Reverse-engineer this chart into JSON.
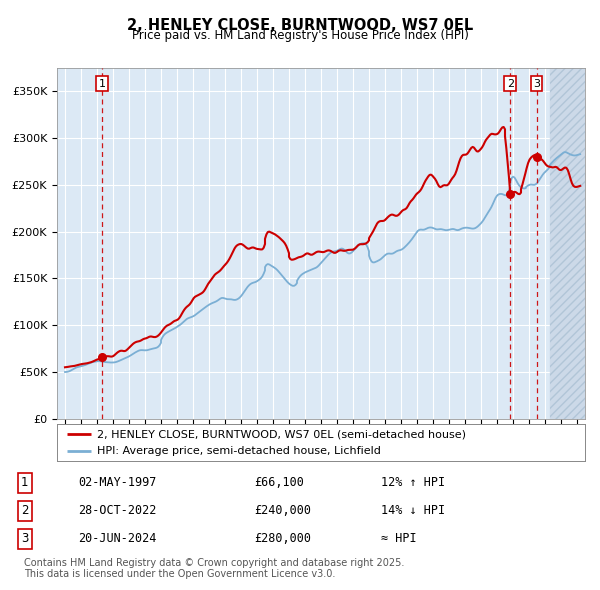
{
  "title1": "2, HENLEY CLOSE, BURNTWOOD, WS7 0EL",
  "title2": "Price paid vs. HM Land Registry's House Price Index (HPI)",
  "legend1": "2, HENLEY CLOSE, BURNTWOOD, WS7 0EL (semi-detached house)",
  "legend2": "HPI: Average price, semi-detached house, Lichfield",
  "transactions": [
    {
      "num": 1,
      "date_label": "02-MAY-1997",
      "price": 66100,
      "note": "12% ↑ HPI",
      "year": 1997.34
    },
    {
      "num": 2,
      "date_label": "28-OCT-2022",
      "price": 240000,
      "note": "14% ↓ HPI",
      "year": 2022.83
    },
    {
      "num": 3,
      "date_label": "20-JUN-2024",
      "price": 280000,
      "note": "≈ HPI",
      "year": 2024.47
    }
  ],
  "ylabel_ticks": [
    "£0",
    "£50K",
    "£100K",
    "£150K",
    "£200K",
    "£250K",
    "£300K",
    "£350K"
  ],
  "ytick_values": [
    0,
    50000,
    100000,
    150000,
    200000,
    250000,
    300000,
    350000
  ],
  "ylim": [
    0,
    375000
  ],
  "xlim_start": 1994.5,
  "xlim_end": 2027.5,
  "hatch_start": 2025.3,
  "bg_chart": "#dce9f5",
  "bg_hatch": "#ccd9e8",
  "red_line": "#cc0000",
  "blue_line": "#7bafd4",
  "grid_color": "#ffffff",
  "footer": "Contains HM Land Registry data © Crown copyright and database right 2025.\nThis data is licensed under the Open Government Licence v3.0.",
  "title1_fontsize": 10.5,
  "title2_fontsize": 8.5,
  "copyright_fontsize": 7.0
}
